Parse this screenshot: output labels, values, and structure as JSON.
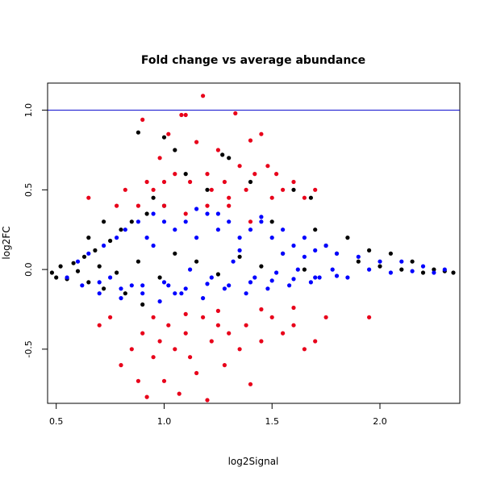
{
  "chart_data": {
    "type": "scatter",
    "title": "Fold change vs average abundance",
    "xlabel": "log2Signal",
    "ylabel": "log2FC",
    "xlim": [
      0.46,
      2.37
    ],
    "ylim": [
      -0.84,
      1.17
    ],
    "x_ticks": [
      0.5,
      1.0,
      1.5,
      2.0
    ],
    "x_tick_labels": [
      "0.5",
      "1.0",
      "1.5",
      "2.0"
    ],
    "y_ticks": [
      -0.5,
      0.0,
      0.5,
      1.0
    ],
    "y_tick_labels": [
      "-0.5",
      "0.0",
      "0.5",
      "1.0"
    ],
    "grid": false,
    "legend": "none",
    "reference_line": {
      "y": 1.0,
      "color": "#0000cc"
    },
    "colors": {
      "black": "#000000",
      "blue": "#0000ff",
      "red": "#e8001a"
    },
    "series": [
      {
        "color": "black",
        "points": [
          [
            0.48,
            -0.02
          ],
          [
            0.5,
            -0.05
          ],
          [
            0.52,
            0.02
          ],
          [
            0.55,
            -0.06
          ],
          [
            0.58,
            0.04
          ],
          [
            0.6,
            -0.01
          ],
          [
            0.63,
            0.08
          ],
          [
            0.65,
            -0.08
          ],
          [
            0.68,
            0.12
          ],
          [
            0.7,
            0.02
          ],
          [
            0.72,
            -0.12
          ],
          [
            0.75,
            0.18
          ],
          [
            0.78,
            -0.02
          ],
          [
            0.8,
            0.25
          ],
          [
            0.82,
            -0.15
          ],
          [
            0.85,
            0.3
          ],
          [
            0.88,
            0.05
          ],
          [
            0.9,
            -0.22
          ],
          [
            0.92,
            0.35
          ],
          [
            0.95,
            0.45
          ],
          [
            0.98,
            -0.05
          ],
          [
            1.0,
            0.4
          ],
          [
            1.05,
            0.1
          ],
          [
            1.1,
            0.6
          ],
          [
            1.15,
            0.05
          ],
          [
            1.2,
            0.5
          ],
          [
            1.25,
            -0.03
          ],
          [
            1.3,
            0.7
          ],
          [
            1.35,
            0.08
          ],
          [
            1.4,
            0.55
          ],
          [
            1.45,
            0.02
          ],
          [
            1.5,
            0.3
          ],
          [
            1.55,
            0.1
          ],
          [
            1.6,
            0.5
          ],
          [
            1.65,
            0.0
          ],
          [
            1.68,
            0.45
          ],
          [
            1.7,
            0.25
          ],
          [
            1.75,
            0.15
          ],
          [
            1.8,
            0.1
          ],
          [
            1.85,
            0.2
          ],
          [
            1.9,
            0.05
          ],
          [
            1.95,
            0.12
          ],
          [
            2.0,
            0.02
          ],
          [
            2.05,
            0.1
          ],
          [
            2.1,
            0.0
          ],
          [
            2.15,
            0.05
          ],
          [
            2.2,
            -0.02
          ],
          [
            2.25,
            0.0
          ],
          [
            2.3,
            -0.01
          ],
          [
            2.34,
            -0.02
          ],
          [
            0.88,
            0.86
          ],
          [
            1.0,
            0.83
          ],
          [
            1.27,
            0.72
          ],
          [
            0.65,
            0.2
          ],
          [
            0.72,
            0.3
          ],
          [
            1.05,
            0.75
          ]
        ]
      },
      {
        "color": "blue",
        "points": [
          [
            0.55,
            -0.05
          ],
          [
            0.6,
            0.05
          ],
          [
            0.62,
            -0.1
          ],
          [
            0.65,
            0.1
          ],
          [
            0.7,
            -0.15
          ],
          [
            0.72,
            0.15
          ],
          [
            0.75,
            -0.05
          ],
          [
            0.78,
            0.2
          ],
          [
            0.8,
            -0.18
          ],
          [
            0.82,
            0.25
          ],
          [
            0.85,
            -0.1
          ],
          [
            0.88,
            0.3
          ],
          [
            0.9,
            -0.15
          ],
          [
            0.92,
            0.2
          ],
          [
            0.95,
            0.35
          ],
          [
            0.98,
            -0.2
          ],
          [
            1.0,
            0.3
          ],
          [
            1.02,
            -0.1
          ],
          [
            1.05,
            0.25
          ],
          [
            1.08,
            -0.15
          ],
          [
            1.1,
            0.3
          ],
          [
            1.12,
            0.0
          ],
          [
            1.15,
            0.2
          ],
          [
            1.18,
            -0.18
          ],
          [
            1.2,
            0.35
          ],
          [
            1.22,
            -0.05
          ],
          [
            1.25,
            0.25
          ],
          [
            1.28,
            -0.12
          ],
          [
            1.3,
            0.3
          ],
          [
            1.32,
            0.05
          ],
          [
            1.35,
            0.2
          ],
          [
            1.38,
            -0.15
          ],
          [
            1.4,
            0.25
          ],
          [
            1.42,
            -0.05
          ],
          [
            1.45,
            0.3
          ],
          [
            1.48,
            -0.12
          ],
          [
            1.5,
            0.2
          ],
          [
            1.52,
            -0.02
          ],
          [
            1.55,
            0.25
          ],
          [
            1.58,
            -0.1
          ],
          [
            1.6,
            0.15
          ],
          [
            1.62,
            0.0
          ],
          [
            1.65,
            0.2
          ],
          [
            1.68,
            -0.08
          ],
          [
            1.7,
            0.12
          ],
          [
            1.72,
            -0.05
          ],
          [
            1.75,
            0.15
          ],
          [
            1.78,
            0.0
          ],
          [
            1.8,
            0.1
          ],
          [
            1.85,
            -0.05
          ],
          [
            1.9,
            0.08
          ],
          [
            1.95,
            0.0
          ],
          [
            2.0,
            0.05
          ],
          [
            2.05,
            -0.02
          ],
          [
            2.1,
            0.05
          ],
          [
            2.15,
            -0.01
          ],
          [
            2.2,
            0.02
          ],
          [
            2.25,
            -0.02
          ],
          [
            2.3,
            0.0
          ],
          [
            0.9,
            -0.1
          ],
          [
            1.0,
            -0.08
          ],
          [
            1.1,
            -0.12
          ],
          [
            1.2,
            -0.09
          ],
          [
            1.3,
            -0.1
          ],
          [
            1.4,
            -0.08
          ],
          [
            1.5,
            -0.07
          ],
          [
            1.6,
            -0.06
          ],
          [
            1.7,
            -0.05
          ],
          [
            1.8,
            -0.04
          ],
          [
            0.8,
            -0.12
          ],
          [
            0.7,
            -0.08
          ],
          [
            1.15,
            0.38
          ],
          [
            1.25,
            0.35
          ],
          [
            1.45,
            0.33
          ],
          [
            0.95,
            0.15
          ],
          [
            1.35,
            0.12
          ],
          [
            1.55,
            0.1
          ],
          [
            1.65,
            0.08
          ],
          [
            1.05,
            -0.15
          ]
        ]
      },
      {
        "color": "red",
        "points": [
          [
            0.65,
            0.45
          ],
          [
            0.78,
            0.4
          ],
          [
            0.82,
            0.5
          ],
          [
            0.88,
            0.4
          ],
          [
            0.9,
            0.94
          ],
          [
            0.92,
            0.55
          ],
          [
            0.95,
            0.5
          ],
          [
            0.98,
            0.7
          ],
          [
            1.0,
            0.55
          ],
          [
            1.02,
            0.85
          ],
          [
            1.05,
            0.6
          ],
          [
            1.08,
            0.97
          ],
          [
            1.1,
            0.97
          ],
          [
            1.12,
            0.55
          ],
          [
            1.15,
            0.8
          ],
          [
            1.18,
            1.09
          ],
          [
            1.2,
            0.6
          ],
          [
            1.22,
            0.5
          ],
          [
            1.25,
            0.75
          ],
          [
            1.28,
            0.55
          ],
          [
            1.3,
            0.45
          ],
          [
            1.33,
            0.98
          ],
          [
            1.35,
            0.65
          ],
          [
            1.38,
            0.5
          ],
          [
            1.4,
            0.81
          ],
          [
            1.42,
            0.6
          ],
          [
            1.45,
            0.85
          ],
          [
            1.48,
            0.65
          ],
          [
            1.5,
            0.45
          ],
          [
            1.52,
            0.6
          ],
          [
            1.55,
            0.5
          ],
          [
            1.6,
            0.55
          ],
          [
            1.65,
            0.45
          ],
          [
            1.7,
            0.5
          ],
          [
            0.7,
            -0.35
          ],
          [
            0.75,
            -0.3
          ],
          [
            0.8,
            -0.6
          ],
          [
            0.85,
            -0.5
          ],
          [
            0.88,
            -0.7
          ],
          [
            0.9,
            -0.4
          ],
          [
            0.92,
            -0.8
          ],
          [
            0.95,
            -0.55
          ],
          [
            0.98,
            -0.45
          ],
          [
            1.0,
            -0.7
          ],
          [
            1.02,
            -0.35
          ],
          [
            1.05,
            -0.5
          ],
          [
            1.07,
            -0.78
          ],
          [
            1.1,
            -0.4
          ],
          [
            1.12,
            -0.55
          ],
          [
            1.15,
            -0.65
          ],
          [
            1.18,
            -0.3
          ],
          [
            1.2,
            -0.82
          ],
          [
            1.22,
            -0.45
          ],
          [
            1.25,
            -0.35
          ],
          [
            1.28,
            -0.6
          ],
          [
            1.3,
            -0.4
          ],
          [
            1.35,
            -0.5
          ],
          [
            1.38,
            -0.35
          ],
          [
            1.4,
            -0.72
          ],
          [
            1.45,
            -0.45
          ],
          [
            1.5,
            -0.3
          ],
          [
            1.55,
            -0.4
          ],
          [
            1.6,
            -0.35
          ],
          [
            1.65,
            -0.5
          ],
          [
            1.7,
            -0.45
          ],
          [
            1.75,
            -0.3
          ],
          [
            1.95,
            -0.3
          ],
          [
            1.1,
            0.35
          ],
          [
            1.0,
            0.4
          ],
          [
            1.3,
            0.4
          ],
          [
            1.2,
            0.4
          ],
          [
            1.4,
            0.3
          ],
          [
            0.95,
            -0.3
          ],
          [
            1.1,
            -0.28
          ],
          [
            1.25,
            -0.26
          ],
          [
            1.45,
            -0.25
          ],
          [
            1.6,
            -0.24
          ]
        ]
      }
    ]
  }
}
